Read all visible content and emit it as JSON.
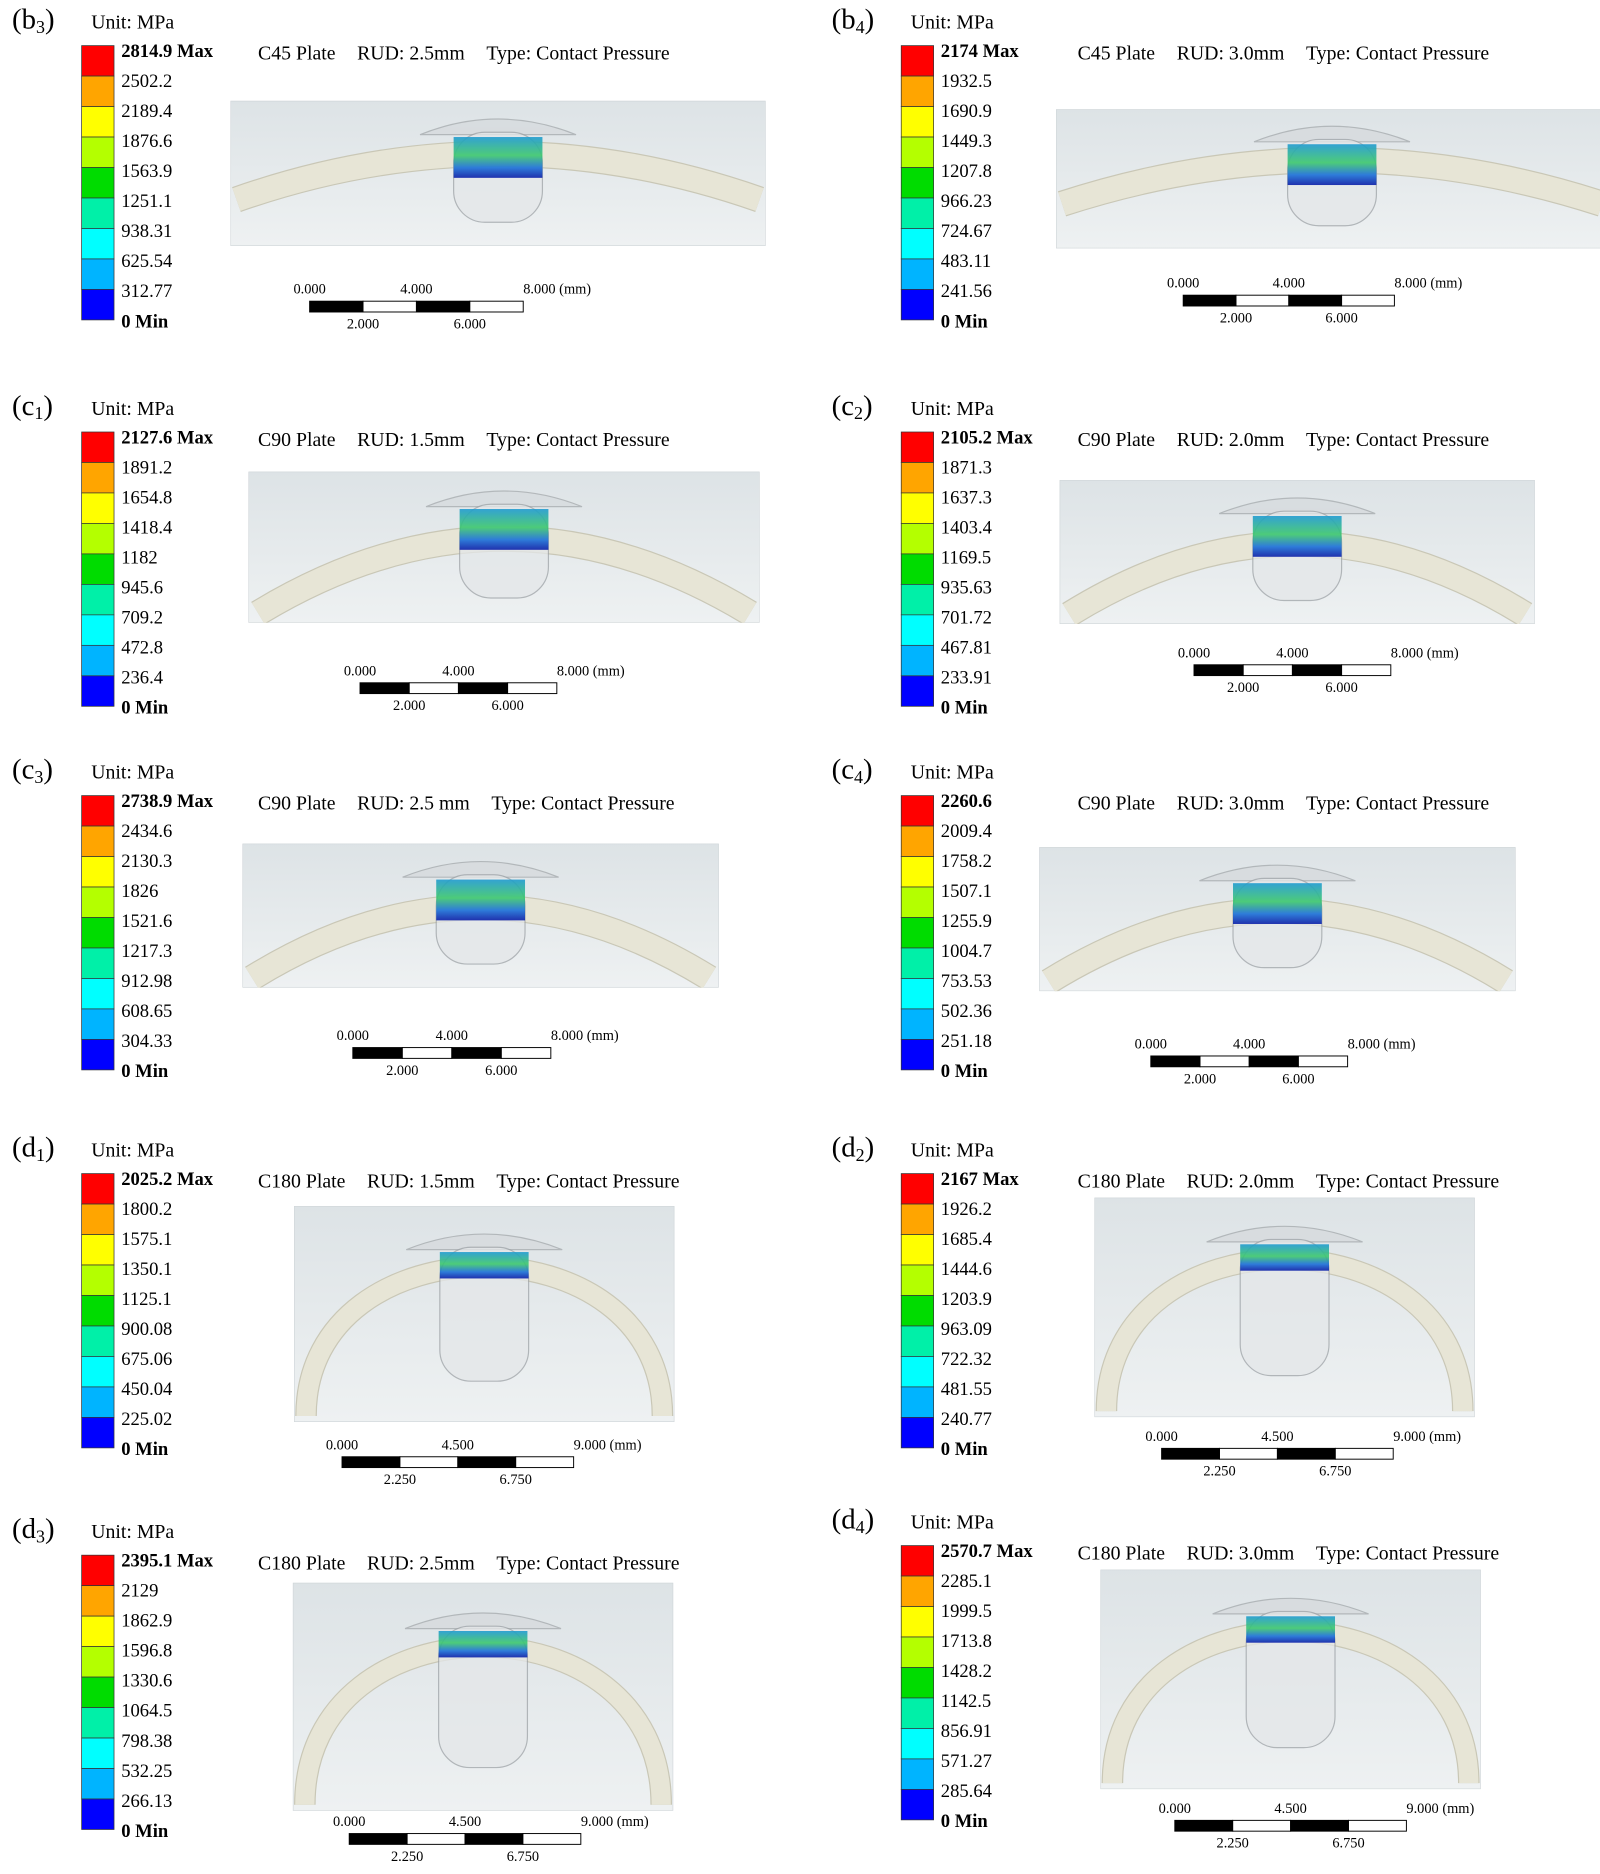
{
  "panels": [
    {
      "label": [
        "(b",
        "3",
        ")"
      ],
      "unit": "Unit: MPa",
      "legend": [
        "2814.9 Max",
        "2502.2",
        "2189.4",
        "1876.6",
        "1563.9",
        "1251.1",
        "938.31",
        "625.54",
        "312.77",
        "0 Min"
      ],
      "plate": "C45 Plate",
      "rud": "RUD: 2.5mm",
      "type": "Type: Contact Pressure",
      "scale_top": [
        "0.000",
        "4.000",
        "8.000 (mm)"
      ],
      "scale_bottom": [
        "2.000",
        "6.000"
      ]
    },
    {
      "label": [
        "(b",
        "4",
        ")"
      ],
      "unit": "Unit: MPa",
      "legend": [
        "2174 Max",
        "1932.5",
        "1690.9",
        "1449.3",
        "1207.8",
        "966.23",
        "724.67",
        "483.11",
        "241.56",
        "0 Min"
      ],
      "plate": "C45 Plate",
      "rud": "RUD: 3.0mm",
      "type": "Type: Contact Pressure",
      "scale_top": [
        "0.000",
        "4.000",
        "8.000 (mm)"
      ],
      "scale_bottom": [
        "2.000",
        "6.000"
      ]
    },
    {
      "label": [
        "(c",
        "1",
        ")"
      ],
      "unit": "Unit: MPa",
      "legend": [
        "2127.6 Max",
        "1891.2",
        "1654.8",
        "1418.4",
        "1182",
        "945.6",
        "709.2",
        "472.8",
        "236.4",
        "0 Min"
      ],
      "plate": "C90 Plate",
      "rud": "RUD: 1.5mm",
      "type": "Type: Contact Pressure",
      "scale_top": [
        "0.000",
        "4.000",
        "8.000 (mm)"
      ],
      "scale_bottom": [
        "2.000",
        "6.000"
      ]
    },
    {
      "label": [
        "(c",
        "2",
        ")"
      ],
      "unit": "Unit: MPa",
      "legend": [
        "2105.2 Max",
        "1871.3",
        "1637.3",
        "1403.4",
        "1169.5",
        "935.63",
        "701.72",
        "467.81",
        "233.91",
        "0 Min"
      ],
      "plate": "C90 Plate",
      "rud": "RUD: 2.0mm",
      "type": "Type: Contact Pressure",
      "scale_top": [
        "0.000",
        "4.000",
        "8.000 (mm)"
      ],
      "scale_bottom": [
        "2.000",
        "6.000"
      ]
    },
    {
      "label": [
        "(c",
        "3",
        ")"
      ],
      "unit": "Unit: MPa",
      "legend": [
        "2738.9 Max",
        "2434.6",
        "2130.3",
        "1826",
        "1521.6",
        "1217.3",
        "912.98",
        "608.65",
        "304.33",
        "0 Min"
      ],
      "plate": "C90 Plate",
      "rud": "RUD: 2.5 mm",
      "type": "Type: Contact Pressure",
      "scale_top": [
        "0.000",
        "4.000",
        "8.000 (mm)"
      ],
      "scale_bottom": [
        "2.000",
        "6.000"
      ]
    },
    {
      "label": [
        "(c",
        "4",
        ")"
      ],
      "unit": "Unit: MPa",
      "legend": [
        "2260.6",
        "2009.4",
        "1758.2",
        "1507.1",
        "1255.9",
        "1004.7",
        "753.53",
        "502.36",
        "251.18",
        "0 Min"
      ],
      "plate": "C90 Plate",
      "rud": "RUD: 3.0mm",
      "type": "Type: Contact Pressure",
      "scale_top": [
        "0.000",
        "4.000",
        "8.000 (mm)"
      ],
      "scale_bottom": [
        "2.000",
        "6.000"
      ]
    },
    {
      "label": [
        "(d",
        "1",
        ")"
      ],
      "unit": "Unit: MPa",
      "legend": [
        "2025.2 Max",
        "1800.2",
        "1575.1",
        "1350.1",
        "1125.1",
        "900.08",
        "675.06",
        "450.04",
        "225.02",
        "0 Min"
      ],
      "plate": "C180 Plate",
      "rud": "RUD: 1.5mm",
      "type": "Type: Contact Pressure",
      "scale_top": [
        "0.000",
        "4.500",
        "9.000 (mm)"
      ],
      "scale_bottom": [
        "2.250",
        "6.750"
      ]
    },
    {
      "label": [
        "(d",
        "2",
        ")"
      ],
      "unit": "Unit: MPa",
      "legend": [
        "2167 Max",
        "1926.2",
        "1685.4",
        "1444.6",
        "1203.9",
        "963.09",
        "722.32",
        "481.55",
        "240.77",
        "0 Min"
      ],
      "plate": "C180 Plate",
      "rud": "RUD: 2.0mm",
      "type": "Type: Contact Pressure",
      "scale_top": [
        "0.000",
        "4.500",
        "9.000 (mm)"
      ],
      "scale_bottom": [
        "2.250",
        "6.750"
      ]
    },
    {
      "label": [
        "(d",
        "3",
        ")"
      ],
      "unit": "Unit: MPa",
      "legend": [
        "2395.1 Max",
        "2129",
        "1862.9",
        "1596.8",
        "1330.6",
        "1064.5",
        "798.38",
        "532.25",
        "266.13",
        "0 Min"
      ],
      "plate": "C180 Plate",
      "rud": "RUD: 2.5mm",
      "type": "Type: Contact Pressure",
      "scale_top": [
        "0.000",
        "4.500",
        "9.000 (mm)"
      ],
      "scale_bottom": [
        "2.250",
        "6.750"
      ]
    },
    {
      "label": [
        "(d",
        "4",
        ")"
      ],
      "unit": "Unit: MPa",
      "legend": [
        "2570.7 Max",
        "2285.1",
        "1999.5",
        "1713.8",
        "1428.2",
        "1142.5",
        "856.91",
        "571.27",
        "285.64",
        "0 Min"
      ],
      "plate": "C180 Plate",
      "rud": "RUD: 3.0mm",
      "type": "Type: Contact Pressure",
      "scale_top": [
        "0.000",
        "4.500",
        "9.000 (mm)"
      ],
      "scale_bottom": [
        "2.250",
        "6.750"
      ]
    }
  ]
}
